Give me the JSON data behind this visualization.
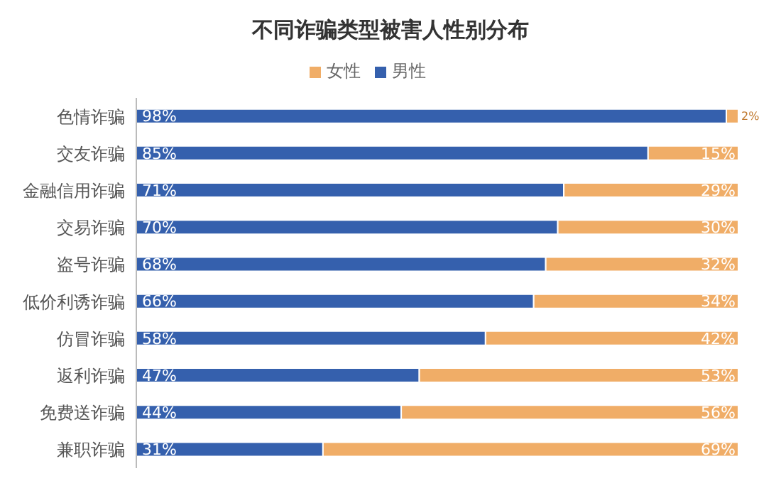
{
  "chart_data": {
    "type": "bar",
    "title": "不同诈骗类型被害人性别分布",
    "orientation": "horizontal",
    "stacked": true,
    "legend": "top",
    "categories": [
      "色情诈骗",
      "交友诈骗",
      "金融信用诈骗",
      "交易诈骗",
      "盗号诈骗",
      "低价利诱诈骗",
      "仿冒诈骗",
      "返利诈骗",
      "免费送诈骗",
      "兼职诈骗"
    ],
    "series": [
      {
        "name": "男性",
        "color": "#3560ad",
        "values": [
          98,
          85,
          71,
          70,
          68,
          66,
          58,
          47,
          44,
          31
        ],
        "value_labels": [
          "98%",
          "85%",
          "71%",
          "70%",
          "68%",
          "66%",
          "58%",
          "47%",
          "44%",
          "31%"
        ]
      },
      {
        "name": "女性",
        "color": "#f0ad67",
        "values": [
          2,
          15,
          29,
          30,
          32,
          34,
          42,
          53,
          56,
          69
        ],
        "value_labels": [
          "2%",
          "15%",
          "29%",
          "30%",
          "32%",
          "34%",
          "42%",
          "53%",
          "56%",
          "69%"
        ]
      }
    ]
  }
}
